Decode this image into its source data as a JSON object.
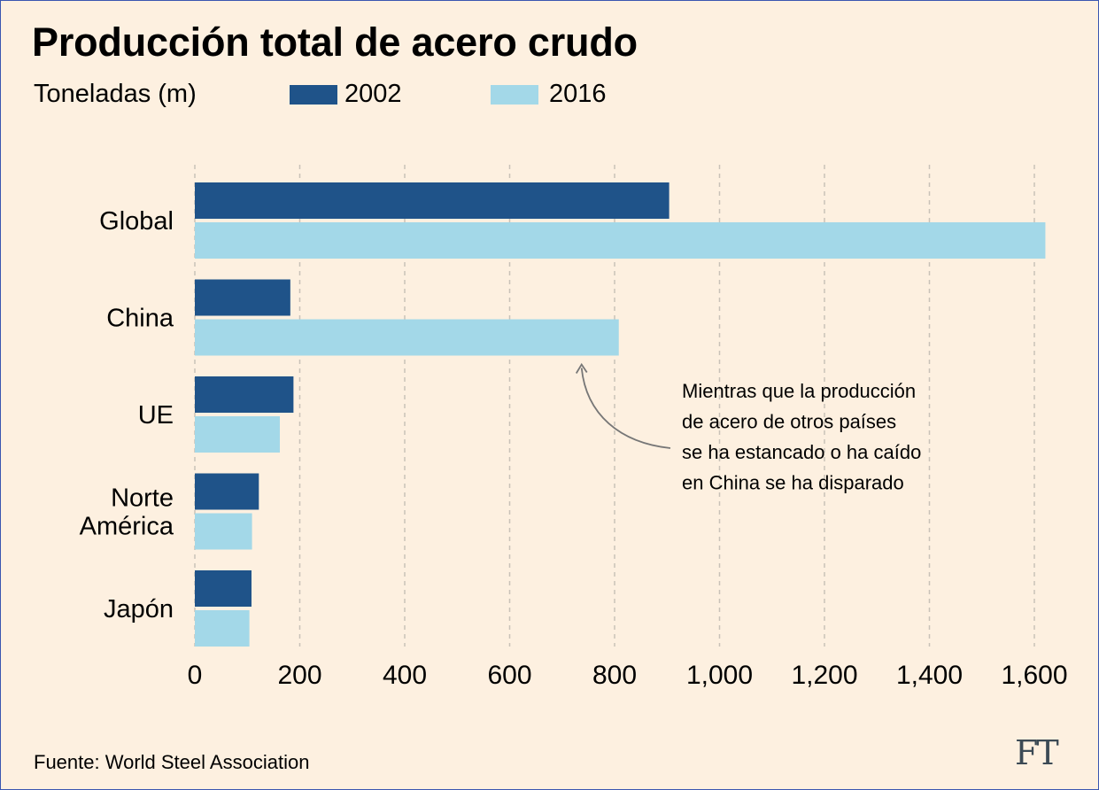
{
  "title": "Producción total de acero crudo",
  "unit_label": "Toneladas (m)",
  "source": "Fuente: World Steel Association",
  "logo": "FT",
  "colors": {
    "background": "#fdf0e0",
    "series_2002": "#1f5389",
    "series_2016": "#a3d8e8",
    "grid": "#c9c2b8"
  },
  "chart_data": {
    "type": "bar",
    "orientation": "horizontal",
    "categories": [
      "Global",
      "China",
      "UE",
      "Norte\nAmérica",
      "Japón"
    ],
    "series": [
      {
        "name": "2002",
        "values": [
          904,
          182,
          188,
          122,
          108
        ]
      },
      {
        "name": "2016",
        "values": [
          1621,
          808,
          162,
          109,
          104
        ]
      }
    ],
    "xlim": [
      0,
      1600
    ],
    "xticks": [
      0,
      200,
      400,
      600,
      800,
      1000,
      1200,
      1400,
      1600
    ],
    "xtick_labels": [
      "0",
      "200",
      "400",
      "600",
      "800",
      "1,000",
      "1,200",
      "1,400",
      "1,600"
    ],
    "grid": "vertical dashed",
    "legend": "top",
    "annotation": {
      "text": [
        "Mientras que la producción",
        "de acero de otros países",
        "se ha estancado o ha caído",
        "en China se ha disparado"
      ],
      "points_to": {
        "category": "China",
        "series": "2016"
      }
    }
  }
}
